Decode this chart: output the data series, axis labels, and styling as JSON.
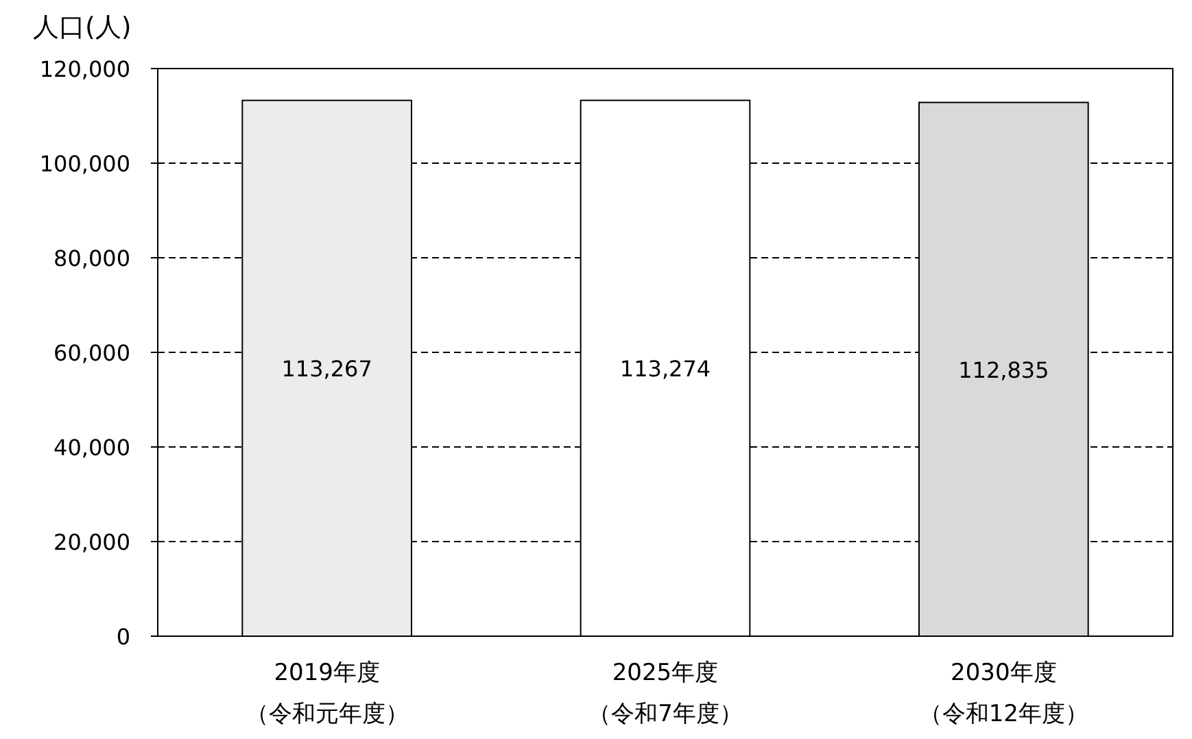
{
  "chart_data": {
    "type": "bar",
    "ylabel": "人口(人)",
    "categories": [
      "2019年度（令和元年度）",
      "2025年度（令和7年度）",
      "2030年度（令和12年度）"
    ],
    "values": [
      113267,
      113274,
      112835
    ],
    "value_labels": [
      "113,267",
      "113,274",
      "112,835"
    ],
    "colors": [
      "#ececec",
      "#ffffff",
      "#d9d9d9"
    ],
    "ylim": [
      0,
      120000
    ],
    "yticks": [
      {
        "value": 0,
        "label": "0"
      },
      {
        "value": 20000,
        "label": "20,000"
      },
      {
        "value": 40000,
        "label": "40,000"
      },
      {
        "value": 60000,
        "label": "60,000"
      },
      {
        "value": 80000,
        "label": "80,000"
      },
      {
        "value": 100000,
        "label": "100,000"
      },
      {
        "value": 120000,
        "label": "120,000"
      }
    ],
    "grid": "y"
  }
}
